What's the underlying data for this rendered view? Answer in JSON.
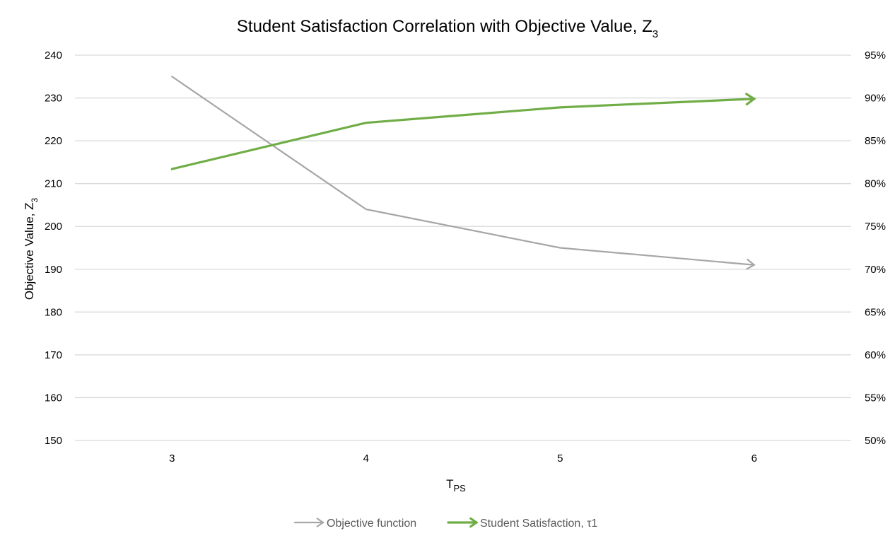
{
  "chart_data": {
    "type": "line",
    "title": {
      "main": "Student Satisfaction Correlation with Objective Value, Z",
      "subscript": "3"
    },
    "xlabel": {
      "main": "T",
      "subscript": "PS"
    },
    "ylabel": {
      "main": "Objective Value, Z",
      "subscript": "3"
    },
    "y2label": "",
    "categories": [
      "3",
      "4",
      "5",
      "6"
    ],
    "y_ticks": [
      "150",
      "160",
      "170",
      "180",
      "190",
      "200",
      "210",
      "220",
      "230",
      "240"
    ],
    "y2_ticks": [
      "50%",
      "55%",
      "60%",
      "65%",
      "70%",
      "75%",
      "80%",
      "85%",
      "90%",
      "95%"
    ],
    "ylim": [
      150,
      240
    ],
    "y2lim": [
      0.5,
      0.95
    ],
    "grid": true,
    "legend_position": "bottom",
    "series": [
      {
        "name": "Objective function",
        "axis": "left",
        "color": "#a6a6a6",
        "values": [
          235,
          204,
          195,
          191
        ]
      },
      {
        "name": "Student Satisfaction, τ1",
        "axis": "right",
        "color": "#70ad47",
        "values": [
          0.817,
          0.871,
          0.889,
          0.899
        ]
      }
    ]
  }
}
